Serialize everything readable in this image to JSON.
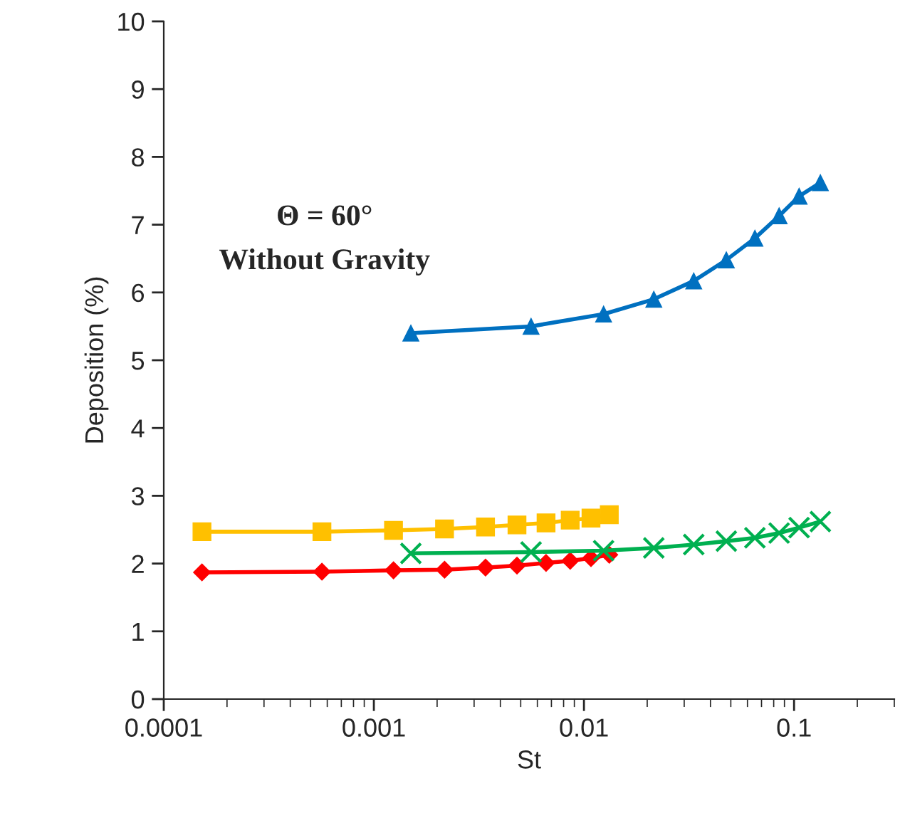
{
  "chart_data": {
    "type": "line",
    "xlabel": "St",
    "ylabel": "Deposition (%)",
    "log": "x",
    "xlim": [
      0.0001,
      0.3
    ],
    "xticks": [
      {
        "value": 0.0001,
        "label": "0.0001"
      },
      {
        "value": 0.001,
        "label": "0.001"
      },
      {
        "value": 0.01,
        "label": "0.01"
      },
      {
        "value": 0.1,
        "label": "0.1"
      }
    ],
    "ylim": [
      0,
      10
    ],
    "yticks": [
      0,
      1,
      2,
      3,
      4,
      5,
      6,
      7,
      8,
      9,
      10
    ],
    "grid": false,
    "annotations": [
      "Θ = 60°",
      "Without Gravity"
    ],
    "series": [
      {
        "color": "#0070c0",
        "marker": "triangle",
        "x": [
          0.0015,
          0.0056,
          0.0124,
          0.0215,
          0.0333,
          0.0476,
          0.0651,
          0.0849,
          0.1057,
          0.1334
        ],
        "values": [
          5.4,
          5.5,
          5.68,
          5.9,
          6.17,
          6.48,
          6.8,
          7.13,
          7.42,
          7.62
        ]
      },
      {
        "color": "#ffc000",
        "marker": "square",
        "x": [
          0.000152,
          0.000566,
          0.00124,
          0.00217,
          0.0034,
          0.0048,
          0.0066,
          0.0086,
          0.0108,
          0.0132
        ],
        "values": [
          2.47,
          2.47,
          2.49,
          2.51,
          2.54,
          2.57,
          2.6,
          2.64,
          2.67,
          2.72
        ]
      },
      {
        "color": "#ff0000",
        "marker": "diamond",
        "x": [
          0.000152,
          0.000566,
          0.00124,
          0.00217,
          0.0034,
          0.0048,
          0.0066,
          0.0086,
          0.0108,
          0.0132
        ],
        "values": [
          1.87,
          1.88,
          1.9,
          1.91,
          1.94,
          1.97,
          2.01,
          2.04,
          2.08,
          2.13
        ]
      },
      {
        "color": "#00b050",
        "marker": "cross",
        "x": [
          0.0015,
          0.0056,
          0.0124,
          0.0215,
          0.0333,
          0.0476,
          0.0651,
          0.0849,
          0.1057,
          0.1334
        ],
        "values": [
          2.15,
          2.17,
          2.19,
          2.23,
          2.28,
          2.33,
          2.38,
          2.45,
          2.53,
          2.62
        ]
      }
    ]
  }
}
